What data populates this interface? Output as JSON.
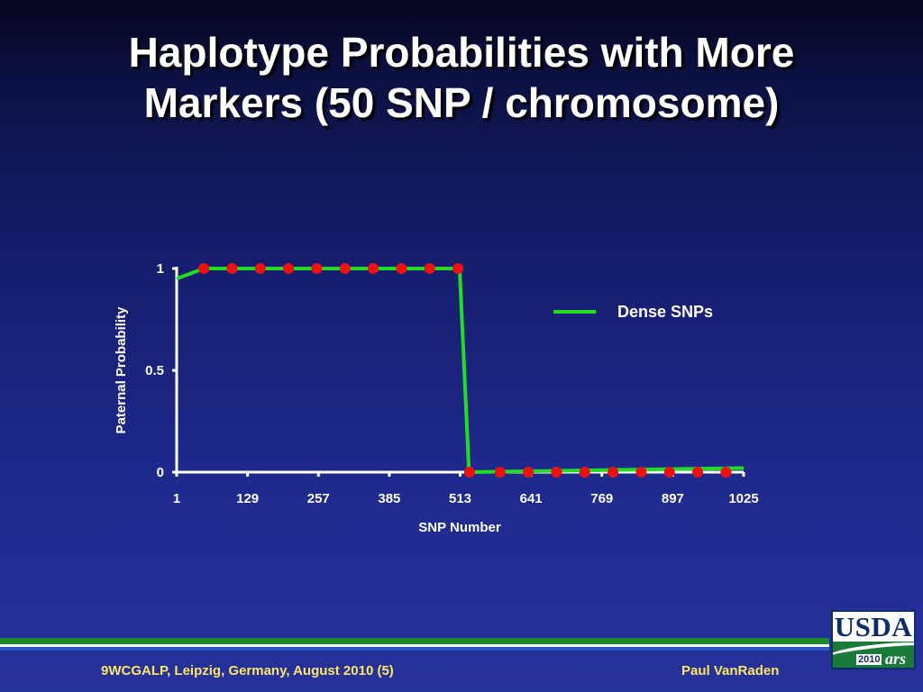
{
  "slide": {
    "title_line1": "Haplotype Probabilities with More",
    "title_line2": "Markers (50 SNP / chromosome)",
    "footer_left": "9WCGALP, Leipzig, Germany, August 2010 (5)",
    "footer_right": "Paul VanRaden",
    "logo": {
      "text": "USDA",
      "year": "2010",
      "mark": "ars"
    }
  },
  "chart_data": {
    "type": "line",
    "title": "",
    "xlabel": "SNP Number",
    "ylabel": "Paternal Probability",
    "xlim": [
      1,
      1025
    ],
    "ylim": [
      0,
      1
    ],
    "x_ticks": [
      1,
      129,
      257,
      385,
      513,
      641,
      769,
      897,
      1025
    ],
    "x_tick_labels": [
      "1",
      "129",
      "257",
      "385",
      "513",
      "641",
      "769",
      "897",
      "1025"
    ],
    "y_ticks": [
      0,
      0.5,
      1
    ],
    "y_tick_labels": [
      "0",
      "0.5",
      "1"
    ],
    "grid": false,
    "legend": {
      "placement": "right",
      "entries": [
        "Dense SNPs"
      ]
    },
    "colors": {
      "line": "#22dd22",
      "markers": "#ee1111",
      "axis": "#ffffff",
      "text": "#ffffff"
    },
    "series": [
      {
        "name": "Dense SNPs",
        "x": [
          1,
          50,
          512,
          529,
          1025
        ],
        "y": [
          0.95,
          1,
          1,
          0,
          0.02
        ]
      }
    ],
    "markers": {
      "x": [
        50,
        101,
        152,
        203,
        254,
        305,
        356,
        407,
        458,
        509,
        530,
        585,
        636,
        687,
        738,
        789,
        840,
        891,
        942,
        993
      ],
      "y": [
        1,
        1,
        1,
        1,
        1,
        1,
        1,
        1,
        1,
        1,
        0,
        0,
        0,
        0,
        0,
        0,
        0,
        0,
        0,
        0
      ]
    }
  }
}
